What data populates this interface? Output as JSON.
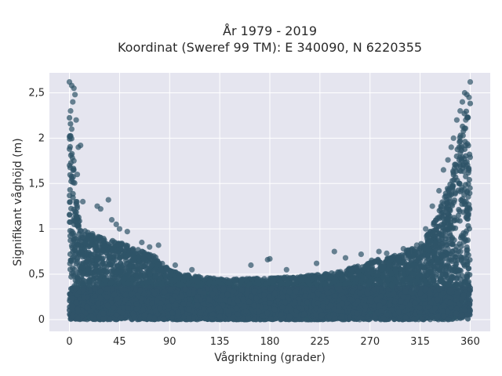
{
  "chart_data": {
    "type": "scatter",
    "title": "År 1979 - 2019",
    "subtitle": "Koordinat (Sweref 99 TM): E 340090, N 6220355",
    "xlabel": "Vågriktning (grader)",
    "ylabel": "Signifikant våghöjd (m)",
    "xlim": [
      -18,
      378
    ],
    "ylim": [
      -0.13,
      2.72
    ],
    "x_ticks": [
      0,
      45,
      90,
      135,
      180,
      225,
      270,
      315,
      360
    ],
    "x_tick_labels": [
      "0",
      "45",
      "90",
      "135",
      "180",
      "225",
      "270",
      "315",
      "360"
    ],
    "y_ticks": [
      0,
      0.5,
      1,
      1.5,
      2,
      2.5
    ],
    "y_tick_labels": [
      "0",
      "0,5",
      "1",
      "1,5",
      "2",
      "2,5"
    ],
    "grid": true,
    "marker_color": "#2f5468",
    "background_color": "#e5e5ef",
    "envelope": {
      "x": [
        0,
        5,
        10,
        20,
        30,
        45,
        60,
        75,
        90,
        100,
        120,
        135,
        150,
        180,
        200,
        225,
        240,
        260,
        270,
        290,
        300,
        315,
        325,
        335,
        345,
        350,
        355,
        360
      ],
      "y": [
        2.45,
        1.5,
        1.0,
        0.95,
        0.9,
        0.85,
        0.78,
        0.72,
        0.55,
        0.5,
        0.47,
        0.45,
        0.45,
        0.46,
        0.47,
        0.5,
        0.52,
        0.6,
        0.65,
        0.7,
        0.75,
        0.82,
        1.0,
        1.3,
        1.7,
        2.0,
        2.3,
        2.4
      ]
    },
    "outliers": [
      {
        "x": 0,
        "y": 2.62
      },
      {
        "x": 2,
        "y": 2.58
      },
      {
        "x": 4,
        "y": 2.55
      },
      {
        "x": 5,
        "y": 2.48
      },
      {
        "x": 3,
        "y": 2.4
      },
      {
        "x": 1,
        "y": 2.3
      },
      {
        "x": 6,
        "y": 2.2
      },
      {
        "x": 8,
        "y": 1.9
      },
      {
        "x": 10,
        "y": 1.92
      },
      {
        "x": 2,
        "y": 2.1
      },
      {
        "x": 4,
        "y": 1.75
      },
      {
        "x": 7,
        "y": 1.6
      },
      {
        "x": 12,
        "y": 1.3
      },
      {
        "x": 25,
        "y": 1.25
      },
      {
        "x": 28,
        "y": 1.22
      },
      {
        "x": 35,
        "y": 1.32
      },
      {
        "x": 38,
        "y": 1.1
      },
      {
        "x": 42,
        "y": 1.05
      },
      {
        "x": 45,
        "y": 1.0
      },
      {
        "x": 52,
        "y": 0.97
      },
      {
        "x": 65,
        "y": 0.85
      },
      {
        "x": 72,
        "y": 0.8
      },
      {
        "x": 80,
        "y": 0.82
      },
      {
        "x": 95,
        "y": 0.6
      },
      {
        "x": 110,
        "y": 0.55
      },
      {
        "x": 163,
        "y": 0.6
      },
      {
        "x": 178,
        "y": 0.66
      },
      {
        "x": 180,
        "y": 0.67
      },
      {
        "x": 195,
        "y": 0.55
      },
      {
        "x": 222,
        "y": 0.62
      },
      {
        "x": 238,
        "y": 0.75
      },
      {
        "x": 248,
        "y": 0.68
      },
      {
        "x": 262,
        "y": 0.72
      },
      {
        "x": 278,
        "y": 0.75
      },
      {
        "x": 285,
        "y": 0.73
      },
      {
        "x": 300,
        "y": 0.78
      },
      {
        "x": 312,
        "y": 0.82
      },
      {
        "x": 320,
        "y": 1.0
      },
      {
        "x": 326,
        "y": 1.25
      },
      {
        "x": 332,
        "y": 1.42
      },
      {
        "x": 336,
        "y": 1.65
      },
      {
        "x": 340,
        "y": 1.76
      },
      {
        "x": 343,
        "y": 1.9
      },
      {
        "x": 345,
        "y": 2.0
      },
      {
        "x": 348,
        "y": 2.2
      },
      {
        "x": 351,
        "y": 2.3
      },
      {
        "x": 353,
        "y": 2.4
      },
      {
        "x": 355,
        "y": 2.5
      },
      {
        "x": 357,
        "y": 2.48
      },
      {
        "x": 359,
        "y": 2.45
      },
      {
        "x": 360,
        "y": 2.62
      },
      {
        "x": 356,
        "y": 2.2
      }
    ]
  }
}
